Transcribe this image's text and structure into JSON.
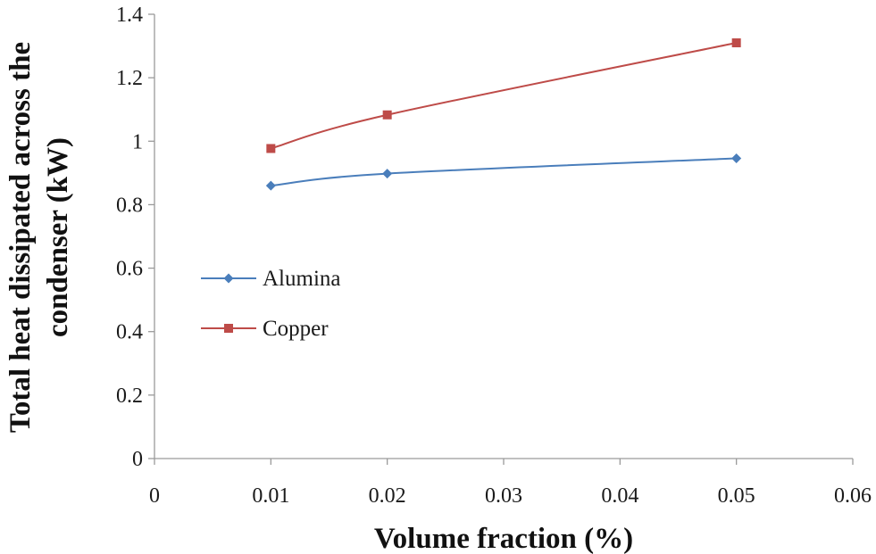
{
  "chart_data": {
    "type": "line",
    "title": "",
    "xlabel": "Volume fraction (%)",
    "ylabel_lines": [
      "Total heat dissipated across the",
      "condenser (kW)"
    ],
    "xlim": [
      0,
      0.06
    ],
    "ylim": [
      0,
      1.4
    ],
    "x_ticks": [
      0,
      0.01,
      0.02,
      0.03,
      0.04,
      0.05,
      0.06
    ],
    "x_tick_labels": [
      "0",
      "0.01",
      "0.02",
      "0.03",
      "0.04",
      "0.05",
      "0.06"
    ],
    "y_ticks": [
      0,
      0.2,
      0.4,
      0.6,
      0.8,
      1,
      1.2,
      1.4
    ],
    "y_tick_labels": [
      "0",
      "0.2",
      "0.4",
      "0.6",
      "0.8",
      "1",
      "1.2",
      "1.4"
    ],
    "grid": false,
    "legend_position": "center-left",
    "series": [
      {
        "name": "Alumina",
        "color": "#4a7ebb",
        "marker": "diamond",
        "x": [
          0.01,
          0.02,
          0.05
        ],
        "y": [
          0.86,
          0.898,
          0.946
        ]
      },
      {
        "name": "Copper",
        "color": "#be4b48",
        "marker": "square",
        "x": [
          0.01,
          0.02,
          0.05
        ],
        "y": [
          0.977,
          1.083,
          1.31
        ]
      }
    ]
  }
}
